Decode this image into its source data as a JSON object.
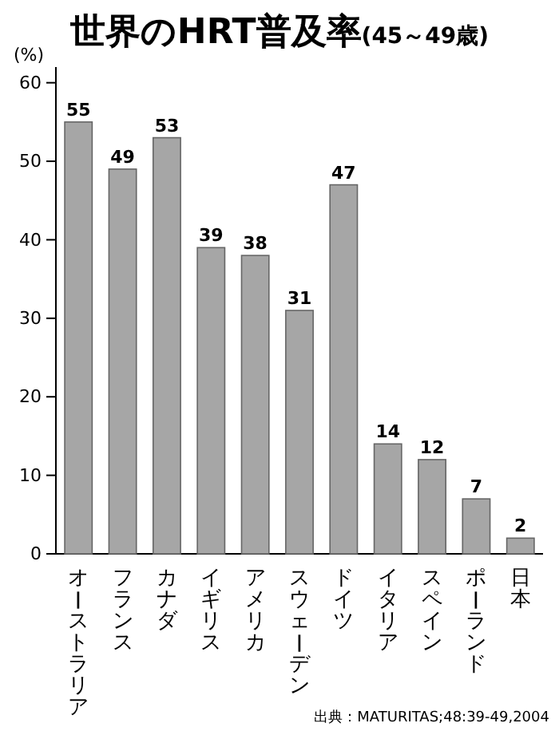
{
  "chart_data": {
    "type": "bar",
    "title": "世界のHRT普及率",
    "subtitle": "(45～49歳)",
    "ylabel": "(%)",
    "categories": [
      "オーストラリア",
      "フランス",
      "カナダ",
      "イギリス",
      "アメリカ",
      "スウェーデン",
      "ドイツ",
      "イタリア",
      "スペイン",
      "ポーランド",
      "日本"
    ],
    "values": [
      55,
      49,
      53,
      39,
      38,
      31,
      47,
      14,
      12,
      7,
      2
    ],
    "color": "#a6a6a6",
    "ylim": [
      0,
      62
    ],
    "yticks": [
      0,
      10,
      20,
      30,
      40,
      50,
      60
    ],
    "grid": false,
    "data_labels": true,
    "annotations": [
      "出典：MATURITAS;48:39-49,2004"
    ]
  }
}
